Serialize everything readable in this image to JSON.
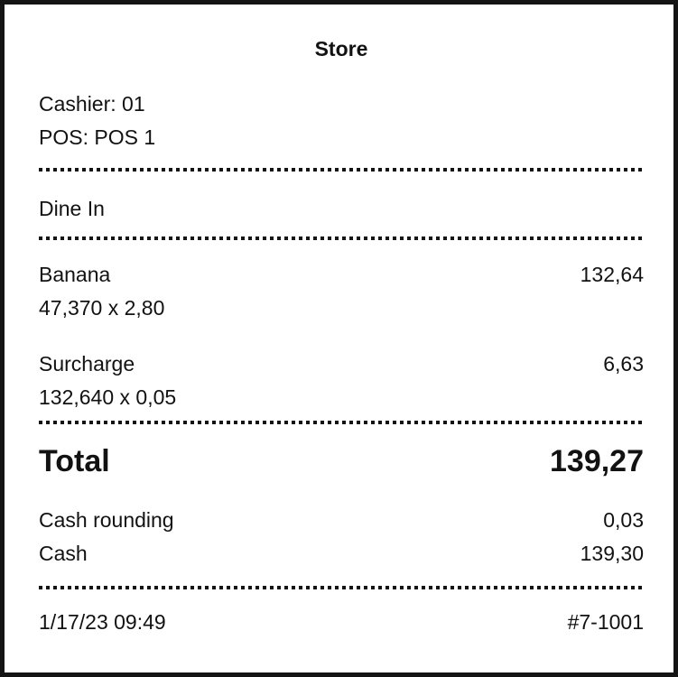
{
  "receipt": {
    "store_name": "Store",
    "cashier_line": "Cashier: 01",
    "pos_line": "POS: POS 1",
    "order_type": "Dine In",
    "items": [
      {
        "name": "Banana",
        "amount": "132,64",
        "qty_line": "47,370 x 2,80"
      },
      {
        "name": "Surcharge",
        "amount": "6,63",
        "qty_line": "132,640 x 0,05"
      }
    ],
    "total": {
      "label": "Total",
      "amount": "139,27"
    },
    "payments": [
      {
        "label": "Cash rounding",
        "amount": "0,03"
      },
      {
        "label": "Cash",
        "amount": "139,30"
      }
    ],
    "footer": {
      "datetime": "1/17/23 09:49",
      "receipt_number": "#7-1001"
    }
  },
  "colors": {
    "text": "#121212",
    "background": "#ffffff",
    "border": "#141414"
  }
}
